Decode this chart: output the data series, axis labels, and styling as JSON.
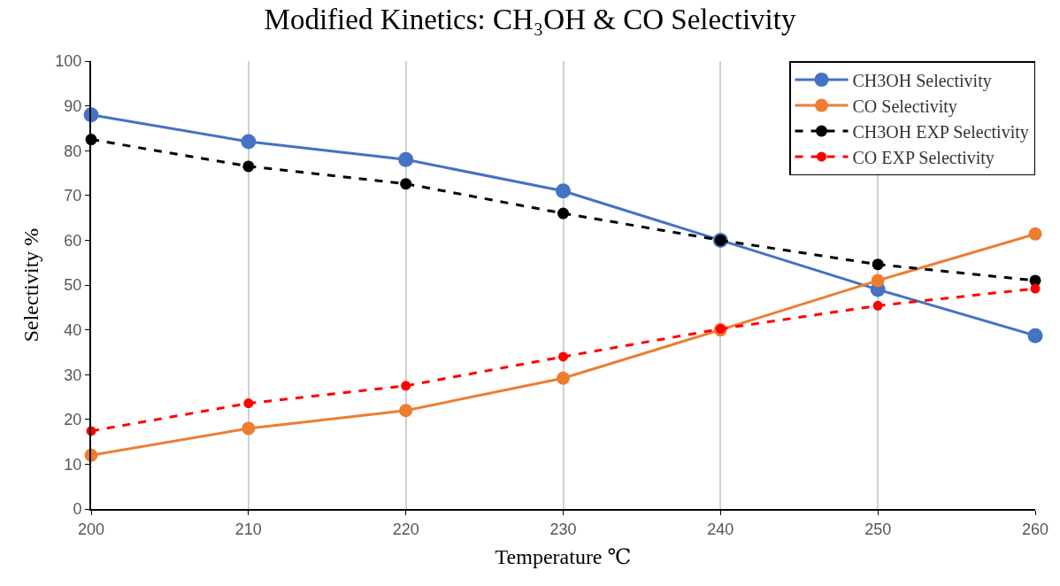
{
  "chart_data": {
    "type": "line",
    "title": "Modified Kinetics: CH₃OH & CO Selectivity",
    "xlabel": "Temperature ℃",
    "ylabel": "Selectivity %",
    "x": [
      200,
      210,
      220,
      230,
      240,
      250,
      260
    ],
    "series": [
      {
        "name": "CH3OH Selectivity",
        "color": "#4472c4",
        "line_style": "solid",
        "values": [
          88,
          82,
          78,
          71,
          60,
          49,
          38.7
        ]
      },
      {
        "name": "CO Selectivity",
        "color": "#ed7d31",
        "line_style": "solid",
        "values": [
          12,
          18,
          22,
          29.2,
          40,
          51,
          61.4
        ]
      },
      {
        "name": "CH3OH EXP Selectivity",
        "color": "#000000",
        "line_style": "dashed",
        "values": [
          82.5,
          76.5,
          72.6,
          66,
          60,
          54.6,
          51
        ]
      },
      {
        "name": "CO EXP Selectivity",
        "color": "#ff0000",
        "line_style": "dashed",
        "values": [
          17.4,
          23.6,
          27.5,
          34,
          40.2,
          45.4,
          49.2
        ]
      }
    ],
    "xlim": [
      200,
      260
    ],
    "xticks": [
      200,
      210,
      220,
      230,
      240,
      250,
      260
    ],
    "ylim": [
      0,
      100
    ],
    "yticks": [
      0,
      10,
      20,
      30,
      40,
      50,
      60,
      70,
      80,
      90,
      100
    ],
    "grid": "x",
    "legend": "top right",
    "marker": "circle"
  }
}
